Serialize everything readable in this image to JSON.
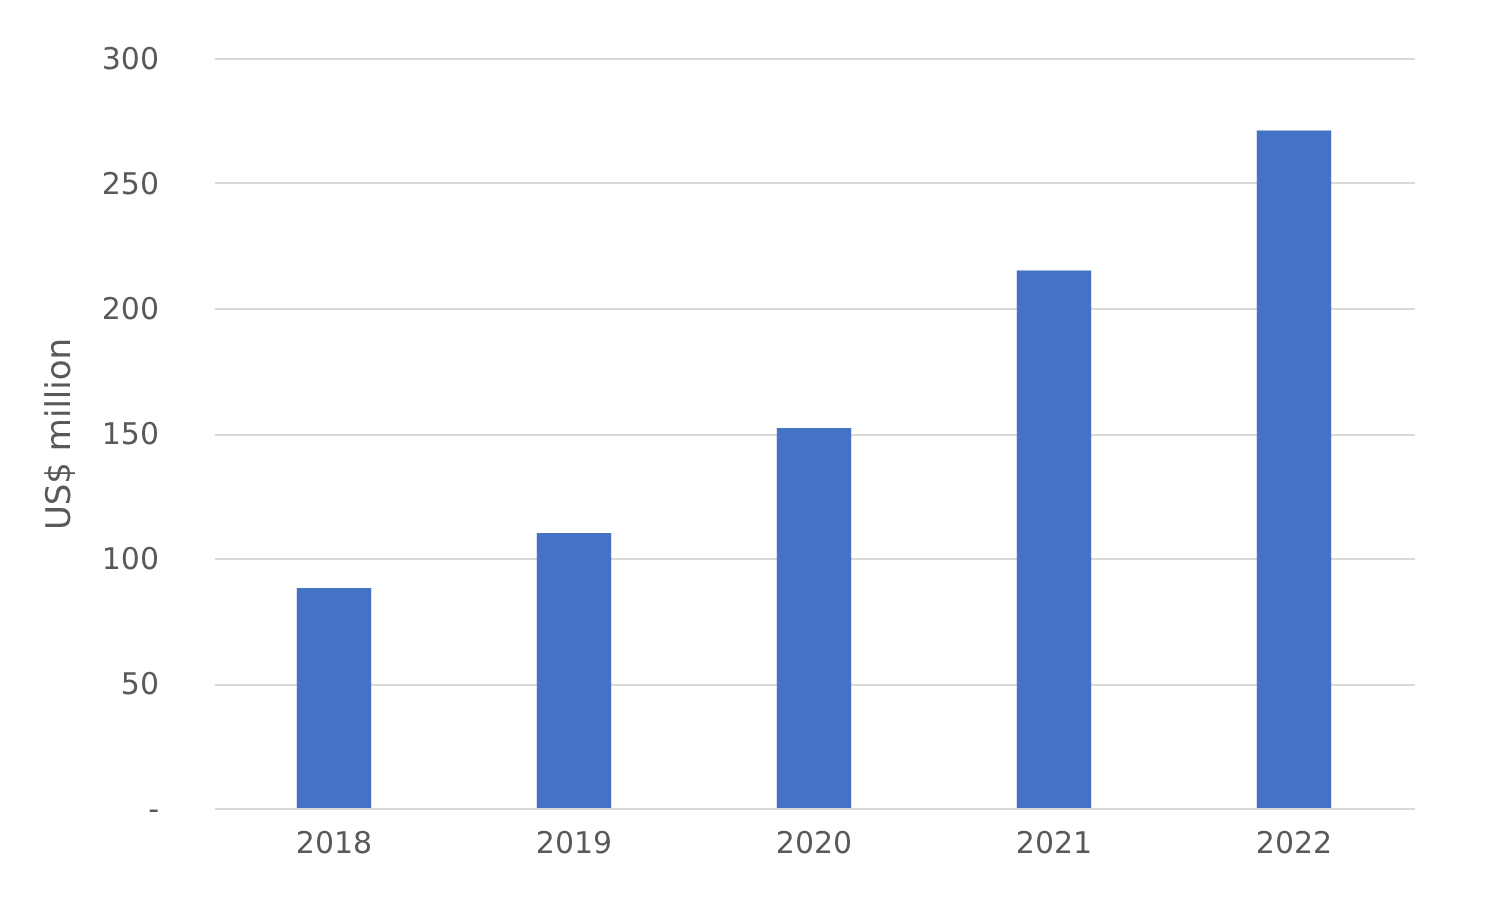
{
  "chart_data": {
    "type": "bar",
    "ylabel": "US$ million",
    "categories": [
      "2018",
      "2019",
      "2020",
      "2021",
      "2022"
    ],
    "values": [
      88,
      110,
      152,
      215,
      271
    ],
    "color": "#4472c4",
    "ylim": [
      0,
      300
    ],
    "yticks": [
      {
        "value": 0,
        "label": "-"
      },
      50,
      100,
      150,
      200,
      250,
      300
    ],
    "grid": "y"
  }
}
